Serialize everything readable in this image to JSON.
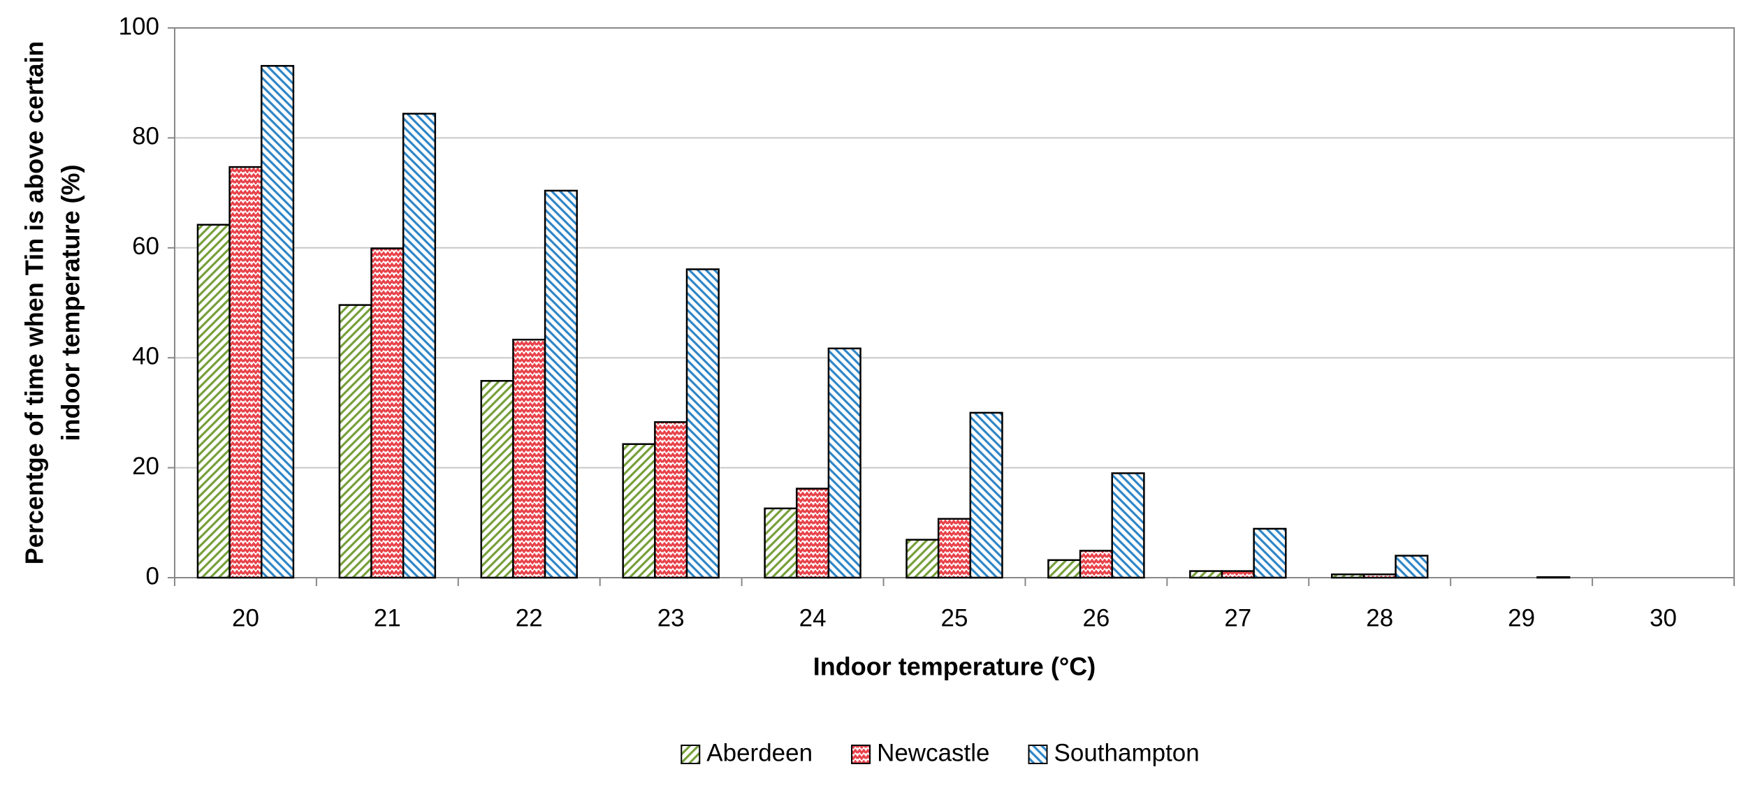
{
  "chart_data": {
    "type": "bar",
    "x_label": "Indoor temperature (°C)",
    "y_label": [
      "Percentge of time when Tin is above certain",
      "indoor temperature (%)"
    ],
    "categories": [
      "20",
      "21",
      "22",
      "23",
      "24",
      "25",
      "26",
      "27",
      "28",
      "29",
      "30"
    ],
    "series": [
      {
        "name": "Aberdeen",
        "color": "#77a03b",
        "pattern": "hatch-up",
        "values": [
          64.2,
          49.6,
          35.8,
          24.3,
          12.6,
          6.9,
          3.2,
          1.2,
          0.6,
          0,
          0
        ]
      },
      {
        "name": "Newcastle",
        "color": "#e8424a",
        "pattern": "zigzag",
        "values": [
          74.7,
          59.9,
          43.3,
          28.3,
          16.2,
          10.7,
          4.9,
          1.2,
          0.6,
          0,
          0
        ]
      },
      {
        "name": "Southampton",
        "color": "#2f86c8",
        "pattern": "hatch-down",
        "values": [
          93.1,
          84.4,
          70.4,
          56.1,
          41.7,
          30,
          19,
          8.9,
          4,
          0.1,
          0
        ]
      }
    ],
    "ylim": [
      0,
      100
    ],
    "yticks": [
      0,
      20,
      40,
      60,
      80,
      100
    ],
    "grid": true,
    "legend": "bottom"
  }
}
